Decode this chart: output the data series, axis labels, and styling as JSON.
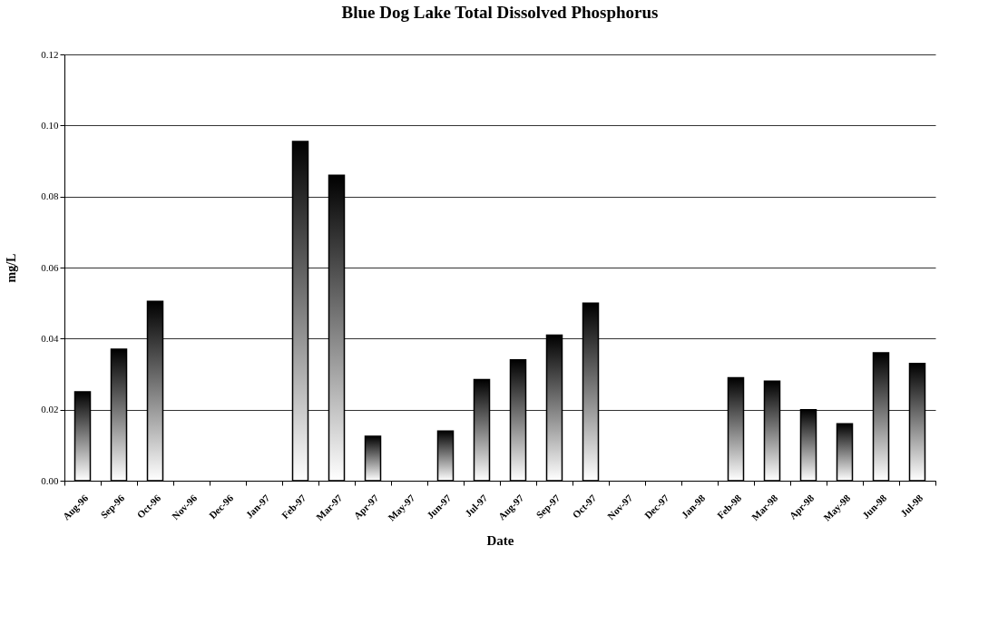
{
  "chart_data": {
    "type": "bar",
    "title": "Blue Dog Lake Total Dissolved Phosphorus",
    "xlabel": "Date",
    "ylabel": "mg/L",
    "categories": [
      "Aug-96",
      "Sep-96",
      "Oct-96",
      "Nov-96",
      "Dec-96",
      "Jan-97",
      "Feb-97",
      "Mar-97",
      "Apr-97",
      "May-97",
      "Jun-97",
      "Jul-97",
      "Aug-97",
      "Sep-97",
      "Oct-97",
      "Nov-97",
      "Dec-97",
      "Jan-98",
      "Feb-98",
      "Mar-98",
      "Apr-98",
      "May-98",
      "Jun-98",
      "Jul-98"
    ],
    "values": [
      0.025,
      0.037,
      0.0505,
      null,
      null,
      null,
      0.0955,
      0.086,
      0.0125,
      null,
      0.014,
      0.0285,
      0.034,
      0.041,
      0.05,
      null,
      null,
      null,
      0.029,
      0.028,
      0.02,
      0.016,
      0.036,
      0.033
    ],
    "color": "#000000",
    "ylim": [
      0,
      0.12
    ],
    "yticks": [
      {
        "value": 0,
        "label": "0.00"
      },
      {
        "value": 0.02,
        "label": "0.02"
      },
      {
        "value": 0.04,
        "label": "0.04"
      },
      {
        "value": 0.06,
        "label": "0.06"
      },
      {
        "value": 0.08,
        "label": "0.08"
      },
      {
        "value": 0.1,
        "label": "0.10"
      },
      {
        "value": 0.12,
        "label": "0.12"
      }
    ],
    "grid": "y"
  }
}
